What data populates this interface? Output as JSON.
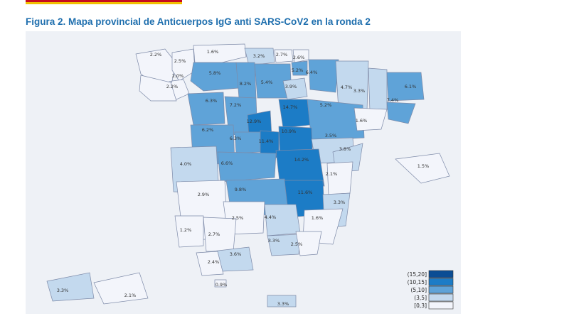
{
  "figure_title": "Figura 2. Mapa provincial de Anticuerpos IgG anti SARS-CoV2 en la ronda 2",
  "colors": {
    "0_3": "#f3f5fb",
    "3_5": "#c3d9ee",
    "5_10": "#5fa3d8",
    "10_15": "#1c7cc6",
    "15_20": "#0a4d94"
  },
  "legend": [
    {
      "label": "(15,20]",
      "color_key": "15_20"
    },
    {
      "label": "(10,15]",
      "color_key": "10_15"
    },
    {
      "label": "(5,10]",
      "color_key": "5_10"
    },
    {
      "label": "(3,5]",
      "color_key": "3_5"
    },
    {
      "label": "[0,3]",
      "color_key": "0_3"
    }
  ],
  "provinces": [
    {
      "label": "2.2%",
      "value": 2.2,
      "cls": "0_3"
    },
    {
      "label": "2.5%",
      "value": 2.5,
      "cls": "0_3"
    },
    {
      "label": "1.6%",
      "value": 1.6,
      "cls": "0_3"
    },
    {
      "label": "3.2%",
      "value": 3.2,
      "cls": "3_5"
    },
    {
      "label": "2.7%",
      "value": 2.7,
      "cls": "0_3"
    },
    {
      "label": "2.6%",
      "value": 2.6,
      "cls": "0_3"
    },
    {
      "label": "5.2%",
      "value": 5.2,
      "cls": "5_10"
    },
    {
      "label": "2.0%",
      "value": 2.0,
      "cls": "0_3"
    },
    {
      "label": "2.2%",
      "value": 2.2,
      "cls": "0_3"
    },
    {
      "label": "5.8%",
      "value": 5.8,
      "cls": "5_10"
    },
    {
      "label": "8.2%",
      "value": 8.2,
      "cls": "5_10"
    },
    {
      "label": "5.4%",
      "value": 5.4,
      "cls": "5_10"
    },
    {
      "label": "6.4%",
      "value": 6.4,
      "cls": "5_10"
    },
    {
      "label": "3.9%",
      "value": 3.9,
      "cls": "3_5"
    },
    {
      "label": "4.7%",
      "value": 4.7,
      "cls": "3_5"
    },
    {
      "label": "3.3%",
      "value": 3.3,
      "cls": "3_5"
    },
    {
      "label": "6.1%",
      "value": 6.1,
      "cls": "5_10"
    },
    {
      "label": "6.3%",
      "value": 6.3,
      "cls": "5_10"
    },
    {
      "label": "7.2%",
      "value": 7.2,
      "cls": "5_10"
    },
    {
      "label": "14.7%",
      "value": 14.7,
      "cls": "10_15"
    },
    {
      "label": "5.2%",
      "value": 5.2,
      "cls": "5_10"
    },
    {
      "label": "7.4%",
      "value": 7.4,
      "cls": "5_10"
    },
    {
      "label": "12.9%",
      "value": 12.9,
      "cls": "10_15"
    },
    {
      "label": "6.2%",
      "value": 6.2,
      "cls": "5_10"
    },
    {
      "label": "6.3%",
      "value": 6.3,
      "cls": "5_10"
    },
    {
      "label": "11.4%",
      "value": 11.4,
      "cls": "10_15"
    },
    {
      "label": "10.9%",
      "value": 10.9,
      "cls": "10_15"
    },
    {
      "label": "3.5%",
      "value": 3.5,
      "cls": "3_5"
    },
    {
      "label": "1.6%",
      "value": 1.6,
      "cls": "0_3"
    },
    {
      "label": "3.8%",
      "value": 3.8,
      "cls": "3_5"
    },
    {
      "label": "4.0%",
      "value": 4.0,
      "cls": "3_5"
    },
    {
      "label": "6.6%",
      "value": 6.6,
      "cls": "5_10"
    },
    {
      "label": "14.2%",
      "value": 14.2,
      "cls": "10_15"
    },
    {
      "label": "2.1%",
      "value": 2.1,
      "cls": "0_3"
    },
    {
      "label": "1.5%",
      "value": 1.5,
      "cls": "0_3"
    },
    {
      "label": "2.9%",
      "value": 2.9,
      "cls": "0_3"
    },
    {
      "label": "9.8%",
      "value": 9.8,
      "cls": "5_10"
    },
    {
      "label": "11.6%",
      "value": 11.6,
      "cls": "10_15"
    },
    {
      "label": "3.3%",
      "value": 3.3,
      "cls": "3_5"
    },
    {
      "label": "2.5%",
      "value": 2.5,
      "cls": "0_3"
    },
    {
      "label": "4.4%",
      "value": 4.4,
      "cls": "3_5"
    },
    {
      "label": "1.6%",
      "value": 1.6,
      "cls": "0_3"
    },
    {
      "label": "1.2%",
      "value": 1.2,
      "cls": "0_3"
    },
    {
      "label": "2.7%",
      "value": 2.7,
      "cls": "0_3"
    },
    {
      "label": "3.3%",
      "value": 3.3,
      "cls": "3_5"
    },
    {
      "label": "2.5%",
      "value": 2.5,
      "cls": "0_3"
    },
    {
      "label": "3.6%",
      "value": 3.6,
      "cls": "3_5"
    },
    {
      "label": "2.4%",
      "value": 2.4,
      "cls": "0_3"
    },
    {
      "label": "0.9%",
      "value": 0.9,
      "cls": "0_3"
    },
    {
      "label": "3.3%",
      "value": 3.3,
      "cls": "3_5"
    },
    {
      "label": "2.1%",
      "value": 2.1,
      "cls": "0_3"
    },
    {
      "label": "3.3%",
      "value": 3.3,
      "cls": "3_5"
    }
  ]
}
